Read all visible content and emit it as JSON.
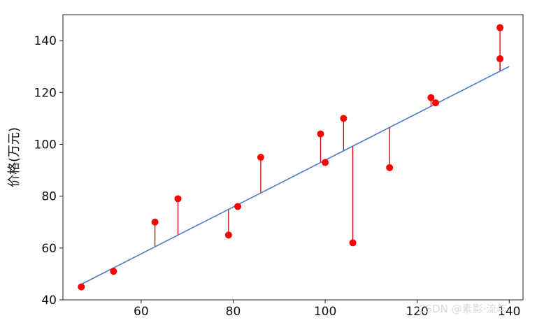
{
  "chart_data": {
    "type": "scatter",
    "title": "",
    "xlabel": "",
    "ylabel": "价格(万元)",
    "xlim": [
      43,
      143
    ],
    "ylim": [
      40,
      150
    ],
    "xticks": [
      60,
      80,
      100,
      120,
      140
    ],
    "yticks": [
      40,
      60,
      80,
      100,
      120,
      140
    ],
    "grid": false,
    "legend": "none",
    "points": [
      {
        "x": 47,
        "y": 45
      },
      {
        "x": 54,
        "y": 51
      },
      {
        "x": 63,
        "y": 70
      },
      {
        "x": 68,
        "y": 79
      },
      {
        "x": 79,
        "y": 65
      },
      {
        "x": 81,
        "y": 76
      },
      {
        "x": 86,
        "y": 95
      },
      {
        "x": 99,
        "y": 104
      },
      {
        "x": 100,
        "y": 93
      },
      {
        "x": 104,
        "y": 110
      },
      {
        "x": 106,
        "y": 62
      },
      {
        "x": 114,
        "y": 91
      },
      {
        "x": 123,
        "y": 118
      },
      {
        "x": 124,
        "y": 116
      },
      {
        "x": 138,
        "y": 133
      },
      {
        "x": 138,
        "y": 145
      }
    ],
    "regression_line": {
      "x": [
        47,
        140
      ],
      "y": [
        46,
        130
      ]
    },
    "colors": {
      "points": "#ff0000",
      "residuals": "#cc0000",
      "line": "#4a7bc8",
      "axes": "#222222"
    }
  },
  "watermark": "CSDN @素影·流年"
}
